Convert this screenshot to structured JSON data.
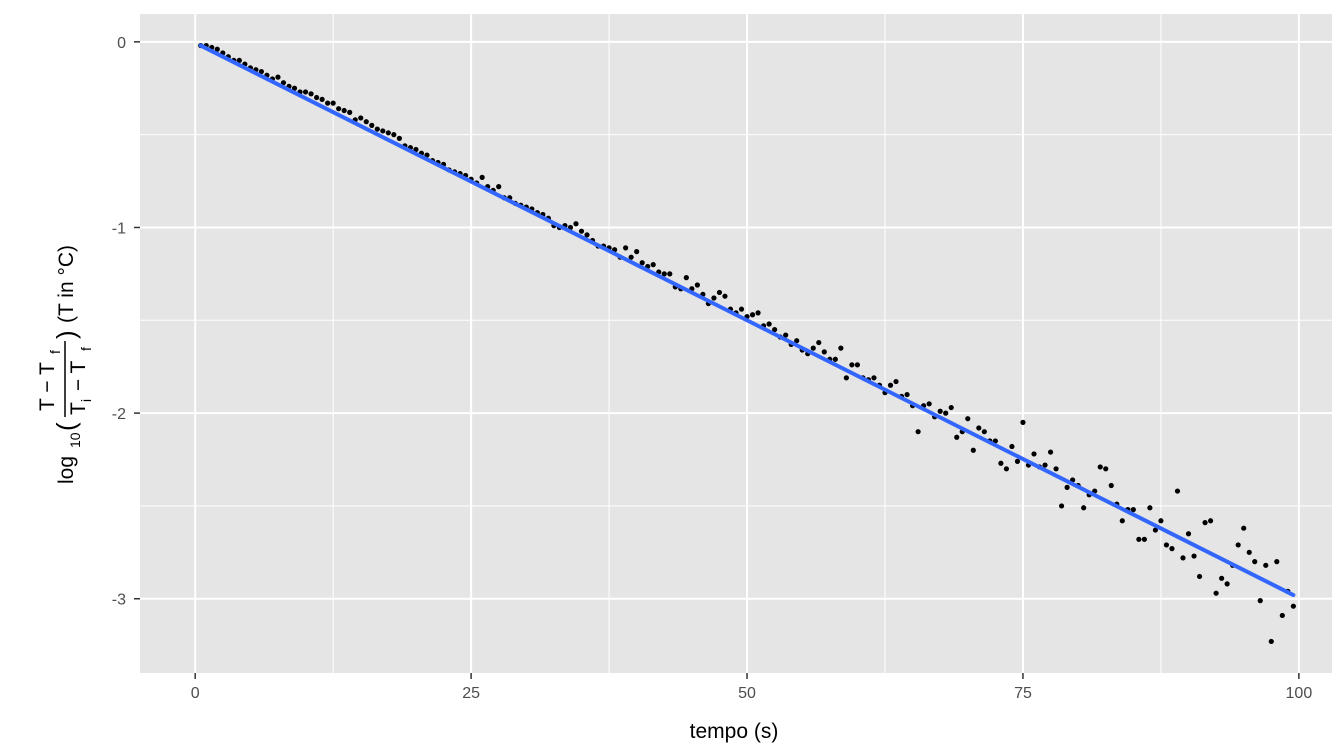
{
  "chart_data": {
    "type": "scatter",
    "title": "",
    "xlabel": "tempo (s)",
    "ylabel": {
      "log": "log",
      "log_subscript": "10",
      "numerator": "T − T",
      "numerator_subscript": "f",
      "denominator_a": "T",
      "denominator_a_subscript": "i",
      "denominator_b": " − T",
      "denominator_b_subscript": "f",
      "suffix": "(T in °C)"
    },
    "xlim": [
      -5,
      103
    ],
    "ylim": [
      -3.4,
      0.15
    ],
    "x_ticks": [
      0,
      25,
      50,
      75,
      100
    ],
    "x_tick_labels": [
      "0",
      "25",
      "50",
      "75",
      "100"
    ],
    "y_ticks": [
      0,
      -1,
      -2,
      -3
    ],
    "y_tick_labels": [
      "0",
      "-1",
      "-2",
      "-3"
    ],
    "grid": true,
    "legend": "none",
    "colors": {
      "panel": "#e5e5e5",
      "grid": "#ffffff",
      "points": "#000000",
      "fit_line": "#3366ff"
    },
    "fit_line": {
      "x": [
        0.5,
        99.5
      ],
      "y": [
        -0.02,
        -2.98
      ]
    },
    "points": [
      [
        0.5,
        -0.02
      ],
      [
        1.0,
        -0.02
      ],
      [
        1.5,
        -0.03
      ],
      [
        2.0,
        -0.04
      ],
      [
        2.5,
        -0.06
      ],
      [
        3.0,
        -0.08
      ],
      [
        3.5,
        -0.1
      ],
      [
        4.0,
        -0.1
      ],
      [
        4.5,
        -0.12
      ],
      [
        5.0,
        -0.14
      ],
      [
        5.5,
        -0.15
      ],
      [
        6.0,
        -0.16
      ],
      [
        6.5,
        -0.18
      ],
      [
        7.0,
        -0.2
      ],
      [
        7.5,
        -0.19
      ],
      [
        8.0,
        -0.22
      ],
      [
        8.5,
        -0.24
      ],
      [
        9.0,
        -0.25
      ],
      [
        9.5,
        -0.27
      ],
      [
        10.0,
        -0.27
      ],
      [
        10.5,
        -0.28
      ],
      [
        11.0,
        -0.3
      ],
      [
        11.5,
        -0.31
      ],
      [
        12.0,
        -0.33
      ],
      [
        12.5,
        -0.33
      ],
      [
        13.0,
        -0.36
      ],
      [
        13.5,
        -0.37
      ],
      [
        14.0,
        -0.38
      ],
      [
        14.5,
        -0.42
      ],
      [
        15.0,
        -0.41
      ],
      [
        15.5,
        -0.43
      ],
      [
        16.0,
        -0.45
      ],
      [
        16.5,
        -0.47
      ],
      [
        17.0,
        -0.48
      ],
      [
        17.5,
        -0.49
      ],
      [
        18.0,
        -0.5
      ],
      [
        18.5,
        -0.52
      ],
      [
        19.0,
        -0.56
      ],
      [
        19.5,
        -0.57
      ],
      [
        20.0,
        -0.58
      ],
      [
        20.5,
        -0.6
      ],
      [
        21.0,
        -0.61
      ],
      [
        21.5,
        -0.64
      ],
      [
        22.0,
        -0.65
      ],
      [
        22.5,
        -0.66
      ],
      [
        23.0,
        -0.69
      ],
      [
        23.5,
        -0.7
      ],
      [
        24.0,
        -0.71
      ],
      [
        24.5,
        -0.72
      ],
      [
        25.0,
        -0.74
      ],
      [
        25.5,
        -0.76
      ],
      [
        26.0,
        -0.73
      ],
      [
        26.5,
        -0.78
      ],
      [
        27.0,
        -0.8
      ],
      [
        27.5,
        -0.78
      ],
      [
        28.0,
        -0.84
      ],
      [
        28.5,
        -0.84
      ],
      [
        29.0,
        -0.87
      ],
      [
        29.5,
        -0.88
      ],
      [
        30.0,
        -0.89
      ],
      [
        30.5,
        -0.9
      ],
      [
        31.0,
        -0.92
      ],
      [
        31.5,
        -0.93
      ],
      [
        32.0,
        -0.95
      ],
      [
        32.5,
        -0.99
      ],
      [
        33.0,
        -1.0
      ],
      [
        33.5,
        -0.99
      ],
      [
        34.0,
        -1.0
      ],
      [
        34.5,
        -0.98
      ],
      [
        35.0,
        -1.02
      ],
      [
        35.5,
        -1.04
      ],
      [
        36.0,
        -1.07
      ],
      [
        36.5,
        -1.1
      ],
      [
        37.0,
        -1.1
      ],
      [
        37.5,
        -1.11
      ],
      [
        38.0,
        -1.12
      ],
      [
        38.5,
        -1.16
      ],
      [
        39.0,
        -1.11
      ],
      [
        39.5,
        -1.16
      ],
      [
        40.0,
        -1.13
      ],
      [
        40.5,
        -1.19
      ],
      [
        41.0,
        -1.21
      ],
      [
        41.5,
        -1.2
      ],
      [
        42.0,
        -1.24
      ],
      [
        42.5,
        -1.25
      ],
      [
        43.0,
        -1.25
      ],
      [
        43.5,
        -1.32
      ],
      [
        44.0,
        -1.33
      ],
      [
        44.5,
        -1.27
      ],
      [
        45.0,
        -1.33
      ],
      [
        45.5,
        -1.31
      ],
      [
        46.0,
        -1.36
      ],
      [
        46.5,
        -1.41
      ],
      [
        47.0,
        -1.38
      ],
      [
        47.5,
        -1.35
      ],
      [
        48.0,
        -1.37
      ],
      [
        48.5,
        -1.44
      ],
      [
        49.0,
        -1.46
      ],
      [
        49.5,
        -1.44
      ],
      [
        50.0,
        -1.48
      ],
      [
        50.5,
        -1.47
      ],
      [
        51.0,
        -1.46
      ],
      [
        51.5,
        -1.53
      ],
      [
        52.0,
        -1.52
      ],
      [
        52.5,
        -1.55
      ],
      [
        53.0,
        -1.59
      ],
      [
        53.5,
        -1.58
      ],
      [
        54.0,
        -1.63
      ],
      [
        54.5,
        -1.61
      ],
      [
        55.0,
        -1.66
      ],
      [
        55.5,
        -1.68
      ],
      [
        56.0,
        -1.65
      ],
      [
        56.5,
        -1.62
      ],
      [
        57.0,
        -1.67
      ],
      [
        57.5,
        -1.71
      ],
      [
        58.0,
        -1.71
      ],
      [
        58.5,
        -1.65
      ],
      [
        59.0,
        -1.81
      ],
      [
        59.5,
        -1.74
      ],
      [
        60.0,
        -1.74
      ],
      [
        60.5,
        -1.81
      ],
      [
        61.0,
        -1.82
      ],
      [
        61.5,
        -1.81
      ],
      [
        62.0,
        -1.85
      ],
      [
        62.5,
        -1.89
      ],
      [
        63.0,
        -1.85
      ],
      [
        63.5,
        -1.83
      ],
      [
        64.0,
        -1.91
      ],
      [
        64.5,
        -1.9
      ],
      [
        65.0,
        -1.96
      ],
      [
        65.5,
        -2.1
      ],
      [
        66.0,
        -1.96
      ],
      [
        66.5,
        -1.95
      ],
      [
        67.0,
        -2.02
      ],
      [
        67.5,
        -1.99
      ],
      [
        68.0,
        -2.0
      ],
      [
        68.5,
        -1.97
      ],
      [
        69.0,
        -2.13
      ],
      [
        69.5,
        -2.1
      ],
      [
        70.0,
        -2.03
      ],
      [
        70.5,
        -2.2
      ],
      [
        71.0,
        -2.08
      ],
      [
        71.5,
        -2.1
      ],
      [
        72.0,
        -2.15
      ],
      [
        72.5,
        -2.15
      ],
      [
        73.0,
        -2.27
      ],
      [
        73.5,
        -2.3
      ],
      [
        74.0,
        -2.18
      ],
      [
        74.5,
        -2.26
      ],
      [
        75.0,
        -2.05
      ],
      [
        75.5,
        -2.28
      ],
      [
        76.0,
        -2.22
      ],
      [
        76.5,
        -2.29
      ],
      [
        77.0,
        -2.28
      ],
      [
        77.5,
        -2.21
      ],
      [
        78.0,
        -2.3
      ],
      [
        78.5,
        -2.5
      ],
      [
        79.0,
        -2.4
      ],
      [
        79.5,
        -2.36
      ],
      [
        80.0,
        -2.39
      ],
      [
        80.5,
        -2.51
      ],
      [
        81.0,
        -2.44
      ],
      [
        81.5,
        -2.42
      ],
      [
        82.0,
        -2.29
      ],
      [
        82.5,
        -2.3
      ],
      [
        83.0,
        -2.39
      ],
      [
        83.5,
        -2.49
      ],
      [
        84.0,
        -2.58
      ],
      [
        84.5,
        -2.52
      ],
      [
        85.0,
        -2.52
      ],
      [
        85.5,
        -2.68
      ],
      [
        86.0,
        -2.68
      ],
      [
        86.5,
        -2.51
      ],
      [
        87.0,
        -2.63
      ],
      [
        87.5,
        -2.58
      ],
      [
        88.0,
        -2.71
      ],
      [
        88.5,
        -2.73
      ],
      [
        89.0,
        -2.42
      ],
      [
        89.5,
        -2.78
      ],
      [
        90.0,
        -2.65
      ],
      [
        90.5,
        -2.77
      ],
      [
        91.0,
        -2.88
      ],
      [
        91.5,
        -2.59
      ],
      [
        92.0,
        -2.58
      ],
      [
        92.5,
        -2.97
      ],
      [
        93.0,
        -2.89
      ],
      [
        93.5,
        -2.92
      ],
      [
        94.0,
        -2.82
      ],
      [
        94.5,
        -2.71
      ],
      [
        95.0,
        -2.62
      ],
      [
        95.5,
        -2.75
      ],
      [
        96.0,
        -2.8
      ],
      [
        96.5,
        -3.01
      ],
      [
        97.0,
        -2.82
      ],
      [
        97.5,
        -3.23
      ],
      [
        98.0,
        -2.8
      ],
      [
        98.5,
        -3.09
      ],
      [
        99.0,
        -2.96
      ],
      [
        99.5,
        -3.04
      ]
    ]
  }
}
